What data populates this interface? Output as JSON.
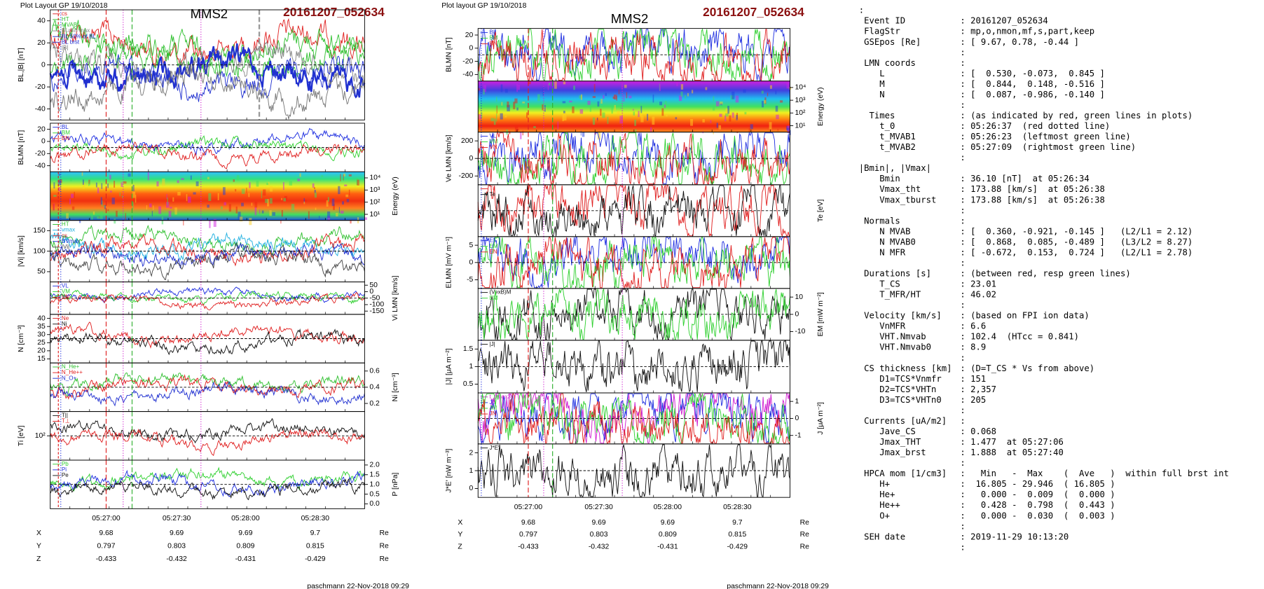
{
  "left_plot": {
    "header": "Plot Layout GP 19/10/2018",
    "title": "MMS2",
    "event": "20161207_052634",
    "panels": [
      {
        "ylabel": "BL,|B| [nT]",
        "yticks": [
          "40",
          "20",
          "0",
          "-20",
          "-40"
        ],
        "legend": [
          {
            "text": "cs",
            "color": "#e02020"
          },
          {
            "text": "HT",
            "color": "#30c030"
          },
          {
            "text": "MVAB",
            "color": "#30c030"
          },
          {
            "text": "BLmin max",
            "color": "#888888"
          },
          {
            "text": "BL 50% of BL",
            "color": "#2030d0"
          },
          {
            "text": "BL brst",
            "color": "#2030d0"
          },
          {
            "text": "|B|",
            "color": "#777777"
          }
        ]
      },
      {
        "ylabel": "BLMN [nT]",
        "yticks": [
          "20",
          "0",
          "-20",
          "-40"
        ],
        "legend": [
          {
            "text": "BL",
            "color": "#2030e0"
          },
          {
            "text": "BM",
            "color": "#30d030"
          },
          {
            "text": "BN",
            "color": "#e02020"
          }
        ]
      },
      {
        "ylabel": "Energy (eV)",
        "yticks": [
          "10⁴",
          "10³",
          "10²",
          "10¹"
        ],
        "spectrogram": "ion"
      },
      {
        "ylabel": "|Vi| [km/s]",
        "yticks": [
          "150",
          "100",
          "50"
        ],
        "legend": [
          {
            "text": "HT",
            "color": "#30c030"
          },
          {
            "text": "vmax",
            "color": "#20b0e0"
          },
          {
            "text": "cs",
            "color": "#e02020"
          },
          {
            "text": "BVmax",
            "color": "#2030d0"
          },
          {
            "text": "|Vi|",
            "color": "#444444"
          }
        ]
      },
      {
        "ylabel": "Vi LMN [km/s]",
        "yticks": [
          "50",
          "0",
          "-50",
          "-100",
          "-150"
        ],
        "legend": [
          {
            "text": "VL",
            "color": "#2030e0"
          },
          {
            "text": "VM",
            "color": "#30d030"
          },
          {
            "text": "VN",
            "color": "#e02020"
          }
        ]
      },
      {
        "ylabel": "N [cm⁻³]",
        "yticks": [
          "40",
          "35",
          "30",
          "25",
          "20",
          "15"
        ],
        "legend": [
          {
            "text": "Ne",
            "color": "#e02020"
          },
          {
            "text": "Ni",
            "color": "#111111"
          }
        ]
      },
      {
        "ylabel": "Ni [cm⁻³]",
        "yticks": [
          "0.6",
          "0.4",
          "0.2"
        ],
        "legend": [
          {
            "text": "N_He+",
            "color": "#30c030"
          },
          {
            "text": "N_He++",
            "color": "#e02020"
          },
          {
            "text": "N_O+",
            "color": "#2030d0"
          }
        ]
      },
      {
        "ylabel": "Ti [eV]",
        "yticks": [
          "10²"
        ],
        "legend": [
          {
            "text": "T||",
            "color": "#111111"
          },
          {
            "text": "T⊥",
            "color": "#e02020"
          }
        ]
      },
      {
        "ylabel": "P [nPa]",
        "yticks": [
          "2.0",
          "1.5",
          "1.0",
          "0.5",
          "0.0"
        ],
        "legend": [
          {
            "text": "Pb",
            "color": "#30d030"
          },
          {
            "text": "Pi",
            "color": "#2030e0"
          },
          {
            "text": "Pe",
            "color": "#111111"
          }
        ]
      }
    ],
    "time_ticks": [
      "05:27:00",
      "05:27:30",
      "05:28:00",
      "05:28:30"
    ],
    "orbit": [
      [
        "X",
        "9.68",
        "9.69",
        "9.69",
        "9.7",
        "Re"
      ],
      [
        "Y",
        "0.797",
        "0.803",
        "0.809",
        "0.815",
        "Re"
      ],
      [
        "Z",
        "-0.433",
        "-0.432",
        "-0.431",
        "-0.429",
        "Re"
      ]
    ],
    "footer": "paschmann 22-Nov-2018 09:29"
  },
  "right_plot": {
    "header": "Plot layout GP 19/10/2018",
    "title": "MMS2",
    "event": "20161207_052634",
    "panels": [
      {
        "ylabel": "BLMN [nT]",
        "yticks": [
          "20",
          "0",
          "-20",
          "-40"
        ],
        "legend": [
          {
            "text": "BL",
            "color": "#2030e0"
          },
          {
            "text": "BM",
            "color": "#30d030"
          },
          {
            "text": "BN",
            "color": "#e02020"
          }
        ]
      },
      {
        "ylabel": "Energy (eV)",
        "yticks": [
          "10⁴",
          "10³",
          "10²",
          "10¹"
        ],
        "spectrogram": "electron"
      },
      {
        "ylabel": "Ve LMN [km/s]",
        "yticks": [
          "200",
          "0",
          "-200"
        ],
        "legend": [
          {
            "text": "VL",
            "color": "#2030e0"
          },
          {
            "text": "VM",
            "color": "#30d030"
          },
          {
            "text": "VN",
            "color": "#e02020"
          }
        ]
      },
      {
        "ylabel": "Te [eV]",
        "legend": [
          {
            "text": "Ti",
            "color": "#e02020"
          },
          {
            "text": "Te",
            "color": "#111111"
          }
        ]
      },
      {
        "ylabel": "ELMN [mV m⁻¹]",
        "yticks": [
          "5",
          "0",
          "-5"
        ],
        "legend": [
          {
            "text": "EL",
            "color": "#2030e0"
          },
          {
            "text": "EM",
            "color": "#30d030"
          },
          {
            "text": "EN",
            "color": "#e02020"
          }
        ]
      },
      {
        "ylabel": "EM [mW m⁻²]",
        "yticks": [
          "10",
          "0",
          "-10"
        ],
        "legend": [
          {
            "text": "(VexB)M",
            "color": "#111111"
          },
          {
            "text": "EM",
            "color": "#30d030"
          }
        ]
      },
      {
        "ylabel": "|J| [μA m⁻²]",
        "yticks": [
          "1.5",
          "1",
          "0.5"
        ],
        "legend": [
          {
            "text": "|J|",
            "color": "#111111"
          }
        ]
      },
      {
        "ylabel": "J [μA m⁻²]",
        "yticks": [
          "1",
          "0",
          "-1"
        ],
        "legend": [
          {
            "text": "t_Jmax3",
            "color": "#d020d0"
          },
          {
            "text": "JL",
            "color": "#2030e0"
          },
          {
            "text": "JM",
            "color": "#30d030"
          },
          {
            "text": "JN",
            "color": "#e02020"
          }
        ]
      },
      {
        "ylabel": "J*E' [nW m⁻³]",
        "yticks": [
          "2",
          "1",
          "0"
        ],
        "legend": [
          {
            "text": "J*E'",
            "color": "#111111"
          }
        ]
      }
    ],
    "time_ticks": [
      "05:27:00",
      "05:27:30",
      "05:28:00",
      "05:28:30"
    ],
    "orbit": [
      [
        "X",
        "9.68",
        "9.69",
        "9.69",
        "9.7",
        "Re"
      ],
      [
        "Y",
        "0.797",
        "0.803",
        "0.809",
        "0.815",
        "Re"
      ],
      [
        "Z",
        "-0.433",
        "-0.432",
        "-0.431",
        "-0.429",
        "Re"
      ]
    ],
    "footer": "paschmann 22-Nov-2018 09:29"
  },
  "info": {
    "lines": [
      {
        "key": ":"
      },
      {
        "key": " Event ID",
        "value": ": 20161207_052634"
      },
      {
        "key": " FlagStr",
        "value": ": mp,o,nmon,mf,s,part,keep"
      },
      {
        "key": " GSEpos [Re]",
        "value": ": [ 9.67, 0.78, -0.44 ]"
      },
      {
        "value": ":"
      },
      {
        "key": " LMN coords",
        "value": ":"
      },
      {
        "key": "    L",
        "value": ": [  0.530, -0.073,  0.845 ]"
      },
      {
        "key": "    M",
        "value": ": [  0.844,  0.148, -0.516 ]"
      },
      {
        "key": "    N",
        "value": ": [  0.087, -0.986, -0.140 ]"
      },
      {
        "value": ":"
      },
      {
        "key": "  Times",
        "value": ": (as indicated by red, green lines in plots)"
      },
      {
        "key": "    t_0",
        "value": ": 05:26:37  (red dotted line)"
      },
      {
        "key": "    t_MVAB1",
        "value": ": 05:26:23  (leftmost green line)"
      },
      {
        "key": "    t_MVAB2",
        "value": ": 05:27:09  (rightmost green line)"
      },
      {
        "value": ":"
      },
      {
        "key": "|Bmin|, |Vmax|"
      },
      {
        "key": "    Bmin",
        "value": ": 36.10 [nT]  at 05:26:34"
      },
      {
        "key": "    Vmax_tht",
        "value": ": 173.88 [km/s]  at 05:26:38"
      },
      {
        "key": "    Vmax_tburst",
        "value": ": 173.88 [km/s]  at 05:26:38"
      },
      {
        "value": ":"
      },
      {
        "key": " Normals",
        "value": ":"
      },
      {
        "key": "    N MVAB",
        "value": ": [  0.360, -0.921, -0.145 ]   (L2/L1 = 2.12)"
      },
      {
        "key": "    N MVAB0",
        "value": ": [  0.868,  0.085, -0.489 ]   (L3/L2 = 8.27)"
      },
      {
        "key": "    N MFR",
        "value": ": [ -0.672,  0.153,  0.724 ]   (L2/L1 = 2.78)"
      },
      {
        "value": ":"
      },
      {
        "key": " Durations [s]",
        "value": ": (between red, resp green lines)"
      },
      {
        "key": "    T_CS",
        "value": ": 23.01"
      },
      {
        "key": "    T_MFR/HT",
        "value": ": 46.02"
      },
      {
        "value": ":"
      },
      {
        "key": " Velocity [km/s]",
        "value": ": (based on FPI ion data)"
      },
      {
        "key": "    VnMFR",
        "value": ": 6.6"
      },
      {
        "key": "    VHT.Nmvab",
        "value": ": 102.4  (HTcc = 0.841)"
      },
      {
        "key": "    VHT.Nmvab0",
        "value": ": 8.9"
      },
      {
        "value": ":"
      },
      {
        "key": " CS thickness [km]",
        "value": ": (D=T_CS * Vs from above)"
      },
      {
        "key": "    D1=TCS*Vnmfr",
        "value": ": 151"
      },
      {
        "key": "    D2=TCS*VHTn",
        "value": ": 2,357"
      },
      {
        "key": "    D3=TCS*VHTn0",
        "value": ": 205"
      },
      {
        "value": ":"
      },
      {
        "key": " Currents [uA/m2]",
        "value": ":"
      },
      {
        "key": "    Jave_CS",
        "value": ": 0.068"
      },
      {
        "key": "    Jmax_THT",
        "value": ": 1.477  at 05:27:06"
      },
      {
        "key": "    Jmax_brst",
        "value": ": 1.888  at 05:27:40"
      },
      {
        "value": ":"
      },
      {
        "key": " HPCA mom [1/cm3]",
        "value": ":   Min   -  Max    (  Ave   )  within full brst int"
      },
      {
        "key": "    H+",
        "value": ":  16.805 - 29.946  ( 16.805 )"
      },
      {
        "key": "    He+",
        "value": ":   0.000 -  0.009  (  0.000 )"
      },
      {
        "key": "    He++",
        "value": ":   0.428 -  0.798  (  0.443 )"
      },
      {
        "key": "    O+",
        "value": ":   0.000 -  0.030  (  0.003 )"
      },
      {
        "value": ":"
      },
      {
        "key": " SEH date",
        "value": ": 2019-11-29 10:13:20"
      },
      {
        "value": ":"
      }
    ]
  }
}
